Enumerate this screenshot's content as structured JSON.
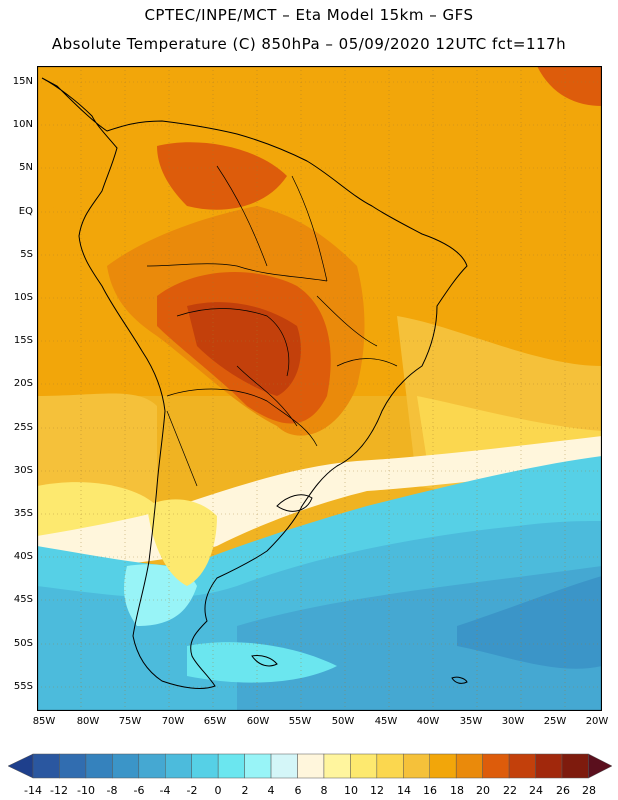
{
  "titles": {
    "line1": "CPTEC/INPE/MCT –  Eta Model 15km – GFS",
    "line2": "Absolute Temperature (C) 850hPa – 05/09/2020 12UTC fct=117h"
  },
  "axes": {
    "lat_labels": [
      "15N",
      "10N",
      "5N",
      "EQ",
      "5S",
      "10S",
      "15S",
      "20S",
      "25S",
      "30S",
      "35S",
      "40S",
      "45S",
      "50S",
      "55S"
    ],
    "lon_labels": [
      "85W",
      "80W",
      "75W",
      "70W",
      "65W",
      "60W",
      "55W",
      "50W",
      "45W",
      "40W",
      "35W",
      "30W",
      "25W",
      "20W"
    ]
  },
  "colorbar": {
    "labels": [
      "-14",
      "-12",
      "-10",
      "-8",
      "-6",
      "-4",
      "-2",
      "0",
      "2",
      "4",
      "6",
      "8",
      "10",
      "12",
      "14",
      "16",
      "18",
      "20",
      "22",
      "24",
      "26",
      "28"
    ],
    "colors": [
      "#1e3f8c",
      "#2a57a0",
      "#316db0",
      "#3582bd",
      "#3b95c8",
      "#45a8d2",
      "#4cbbdc",
      "#56d0e6",
      "#6be6ef",
      "#98f4f7",
      "#d4f6f8",
      "#fff6dc",
      "#fff59e",
      "#fde96f",
      "#fbd74f",
      "#f5c13a",
      "#f2a60a",
      "#ea8a0b",
      "#dd5c0b",
      "#c3400b",
      "#a1280c",
      "#7e1b0d",
      "#5a0f1d"
    ]
  },
  "map": {
    "ocean_warm_color": "#f0ac12",
    "land_hot_color": "#d96215",
    "cold_water_color": "#47b6d8"
  }
}
